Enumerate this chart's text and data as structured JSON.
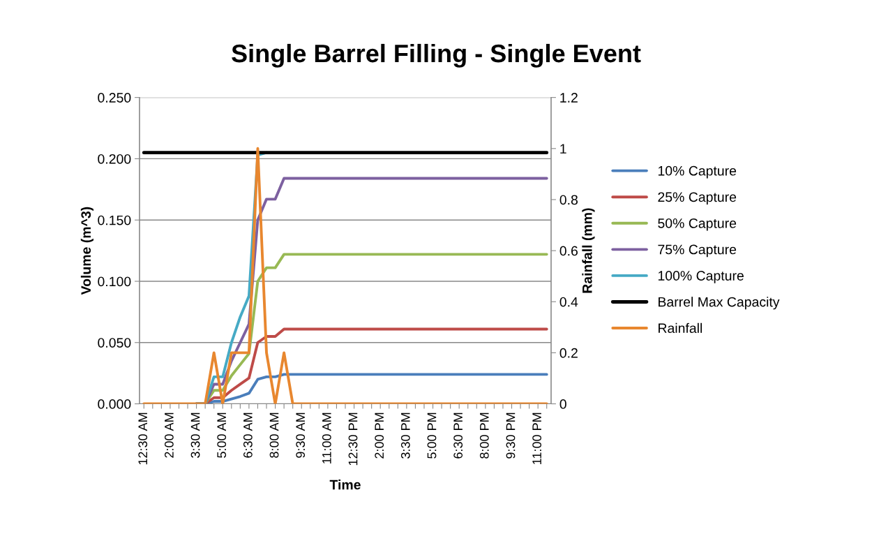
{
  "chart_data": {
    "type": "line",
    "title": "Single Barrel Filling - Single Event",
    "xlabel": "Time",
    "ylabel": "Volume (m^3)",
    "y2label": "Rainfall (mm)",
    "categories": [
      "12:30 AM",
      null,
      null,
      "2:00 AM",
      null,
      null,
      "3:30 AM",
      null,
      null,
      "5:00 AM",
      null,
      null,
      "6:30 AM",
      null,
      null,
      "8:00 AM",
      null,
      null,
      "9:30 AM",
      null,
      null,
      "11:00 AM",
      null,
      null,
      "12:30 PM",
      null,
      null,
      "2:00 PM",
      null,
      null,
      "3:30 PM",
      null,
      null,
      "5:00 PM",
      null,
      null,
      "6:30 PM",
      null,
      null,
      "8:00 PM",
      null,
      null,
      "9:30 PM",
      null,
      null,
      "11:00 PM",
      null
    ],
    "ylim": [
      0,
      0.25
    ],
    "yticks": [
      {
        "value": 0,
        "label": "0.000"
      },
      {
        "value": 0.05,
        "label": "0.050"
      },
      {
        "value": 0.1,
        "label": "0.100"
      },
      {
        "value": 0.15,
        "label": "0.150"
      },
      {
        "value": 0.2,
        "label": "0.200"
      },
      {
        "value": 0.25,
        "label": "0.250"
      }
    ],
    "y2lim": [
      0,
      1.2
    ],
    "y2ticks": [
      0,
      0.2,
      0.4,
      0.6,
      0.8,
      1,
      1.2
    ],
    "grid": "y",
    "legend": "right",
    "marker": "none",
    "line_style": "solid",
    "series": [
      {
        "name": "10% Capture",
        "color": "#4a7ebb",
        "values": [
          null,
          null,
          null,
          null,
          null,
          null,
          0,
          0,
          0.002,
          0.002,
          0.004,
          0.006,
          0.0086,
          0.02,
          0.022,
          0.022,
          0.024,
          0.024,
          0.024,
          0.024,
          0.024,
          0.024,
          0.024,
          0.024,
          0.024,
          0.024,
          0.024,
          0.024,
          0.024,
          0.024,
          0.024,
          0.024,
          0.024,
          0.024,
          0.024,
          0.024,
          0.024,
          0.024,
          0.024,
          0.024,
          0.024,
          0.024,
          0.024,
          0.024,
          0.024,
          0.024,
          0.024
        ]
      },
      {
        "name": "25% Capture",
        "color": "#be4b48",
        "values": [
          null,
          null,
          null,
          null,
          null,
          null,
          0,
          0,
          0.005,
          0.005,
          0.011,
          0.016,
          0.021,
          0.05,
          0.055,
          0.055,
          0.061,
          0.061,
          0.061,
          0.061,
          0.061,
          0.061,
          0.061,
          0.061,
          0.061,
          0.061,
          0.061,
          0.061,
          0.061,
          0.061,
          0.061,
          0.061,
          0.061,
          0.061,
          0.061,
          0.061,
          0.061,
          0.061,
          0.061,
          0.061,
          0.061,
          0.061,
          0.061,
          0.061,
          0.061,
          0.061,
          0.061
        ]
      },
      {
        "name": "50% Capture",
        "color": "#98b954",
        "values": [
          null,
          null,
          null,
          null,
          null,
          null,
          0,
          0,
          0.011,
          0.011,
          0.023,
          0.032,
          0.041,
          0.1,
          0.111,
          0.111,
          0.122,
          0.122,
          0.122,
          0.122,
          0.122,
          0.122,
          0.122,
          0.122,
          0.122,
          0.122,
          0.122,
          0.122,
          0.122,
          0.122,
          0.122,
          0.122,
          0.122,
          0.122,
          0.122,
          0.122,
          0.122,
          0.122,
          0.122,
          0.122,
          0.122,
          0.122,
          0.122,
          0.122,
          0.122,
          0.122,
          0.122
        ]
      },
      {
        "name": "75% Capture",
        "color": "#7d60a0",
        "values": [
          null,
          null,
          null,
          null,
          null,
          null,
          0,
          0,
          0.016,
          0.016,
          0.035,
          0.05,
          0.065,
          0.15,
          0.167,
          0.167,
          0.184,
          0.184,
          0.184,
          0.184,
          0.184,
          0.184,
          0.184,
          0.184,
          0.184,
          0.184,
          0.184,
          0.184,
          0.184,
          0.184,
          0.184,
          0.184,
          0.184,
          0.184,
          0.184,
          0.184,
          0.184,
          0.184,
          0.184,
          0.184,
          0.184,
          0.184,
          0.184,
          0.184,
          0.184,
          0.184,
          0.184
        ]
      },
      {
        "name": "100% Capture",
        "color": "#46aac5",
        "values": [
          null,
          null,
          null,
          null,
          null,
          null,
          0,
          0,
          0.022,
          0.022,
          0.05,
          0.071,
          0.088,
          0.203,
          0.205,
          null,
          null,
          null,
          null,
          null,
          null,
          null,
          null,
          null,
          null,
          null,
          null,
          null,
          null,
          null,
          null,
          null,
          null,
          null,
          null,
          null,
          null,
          null,
          null,
          null,
          null,
          null,
          null,
          null,
          null,
          null,
          null
        ]
      },
      {
        "name": "Barrel Max Capacity",
        "color": "#000000",
        "values": [
          0.205,
          0.205,
          0.205,
          0.205,
          0.205,
          0.205,
          0.205,
          0.205,
          0.205,
          0.205,
          0.205,
          0.205,
          0.205,
          0.205,
          0.205,
          0.205,
          0.205,
          0.205,
          0.205,
          0.205,
          0.205,
          0.205,
          0.205,
          0.205,
          0.205,
          0.205,
          0.205,
          0.205,
          0.205,
          0.205,
          0.205,
          0.205,
          0.205,
          0.205,
          0.205,
          0.205,
          0.205,
          0.205,
          0.205,
          0.205,
          0.205,
          0.205,
          0.205,
          0.205,
          0.205,
          0.205,
          0.205
        ]
      },
      {
        "name": "Rainfall",
        "color": "#e8872f",
        "axis": "y2",
        "values": [
          0,
          0,
          0,
          0,
          0,
          0,
          0,
          0,
          0.2,
          0,
          0.2,
          0.2,
          0.2,
          1,
          0.2,
          0,
          0.2,
          0,
          0,
          0,
          0,
          0,
          0,
          0,
          0,
          0,
          0,
          0,
          0,
          0,
          0,
          0,
          0,
          0,
          0,
          0,
          0,
          0,
          0,
          0,
          0,
          0,
          0,
          0,
          0,
          0,
          0
        ]
      }
    ]
  }
}
